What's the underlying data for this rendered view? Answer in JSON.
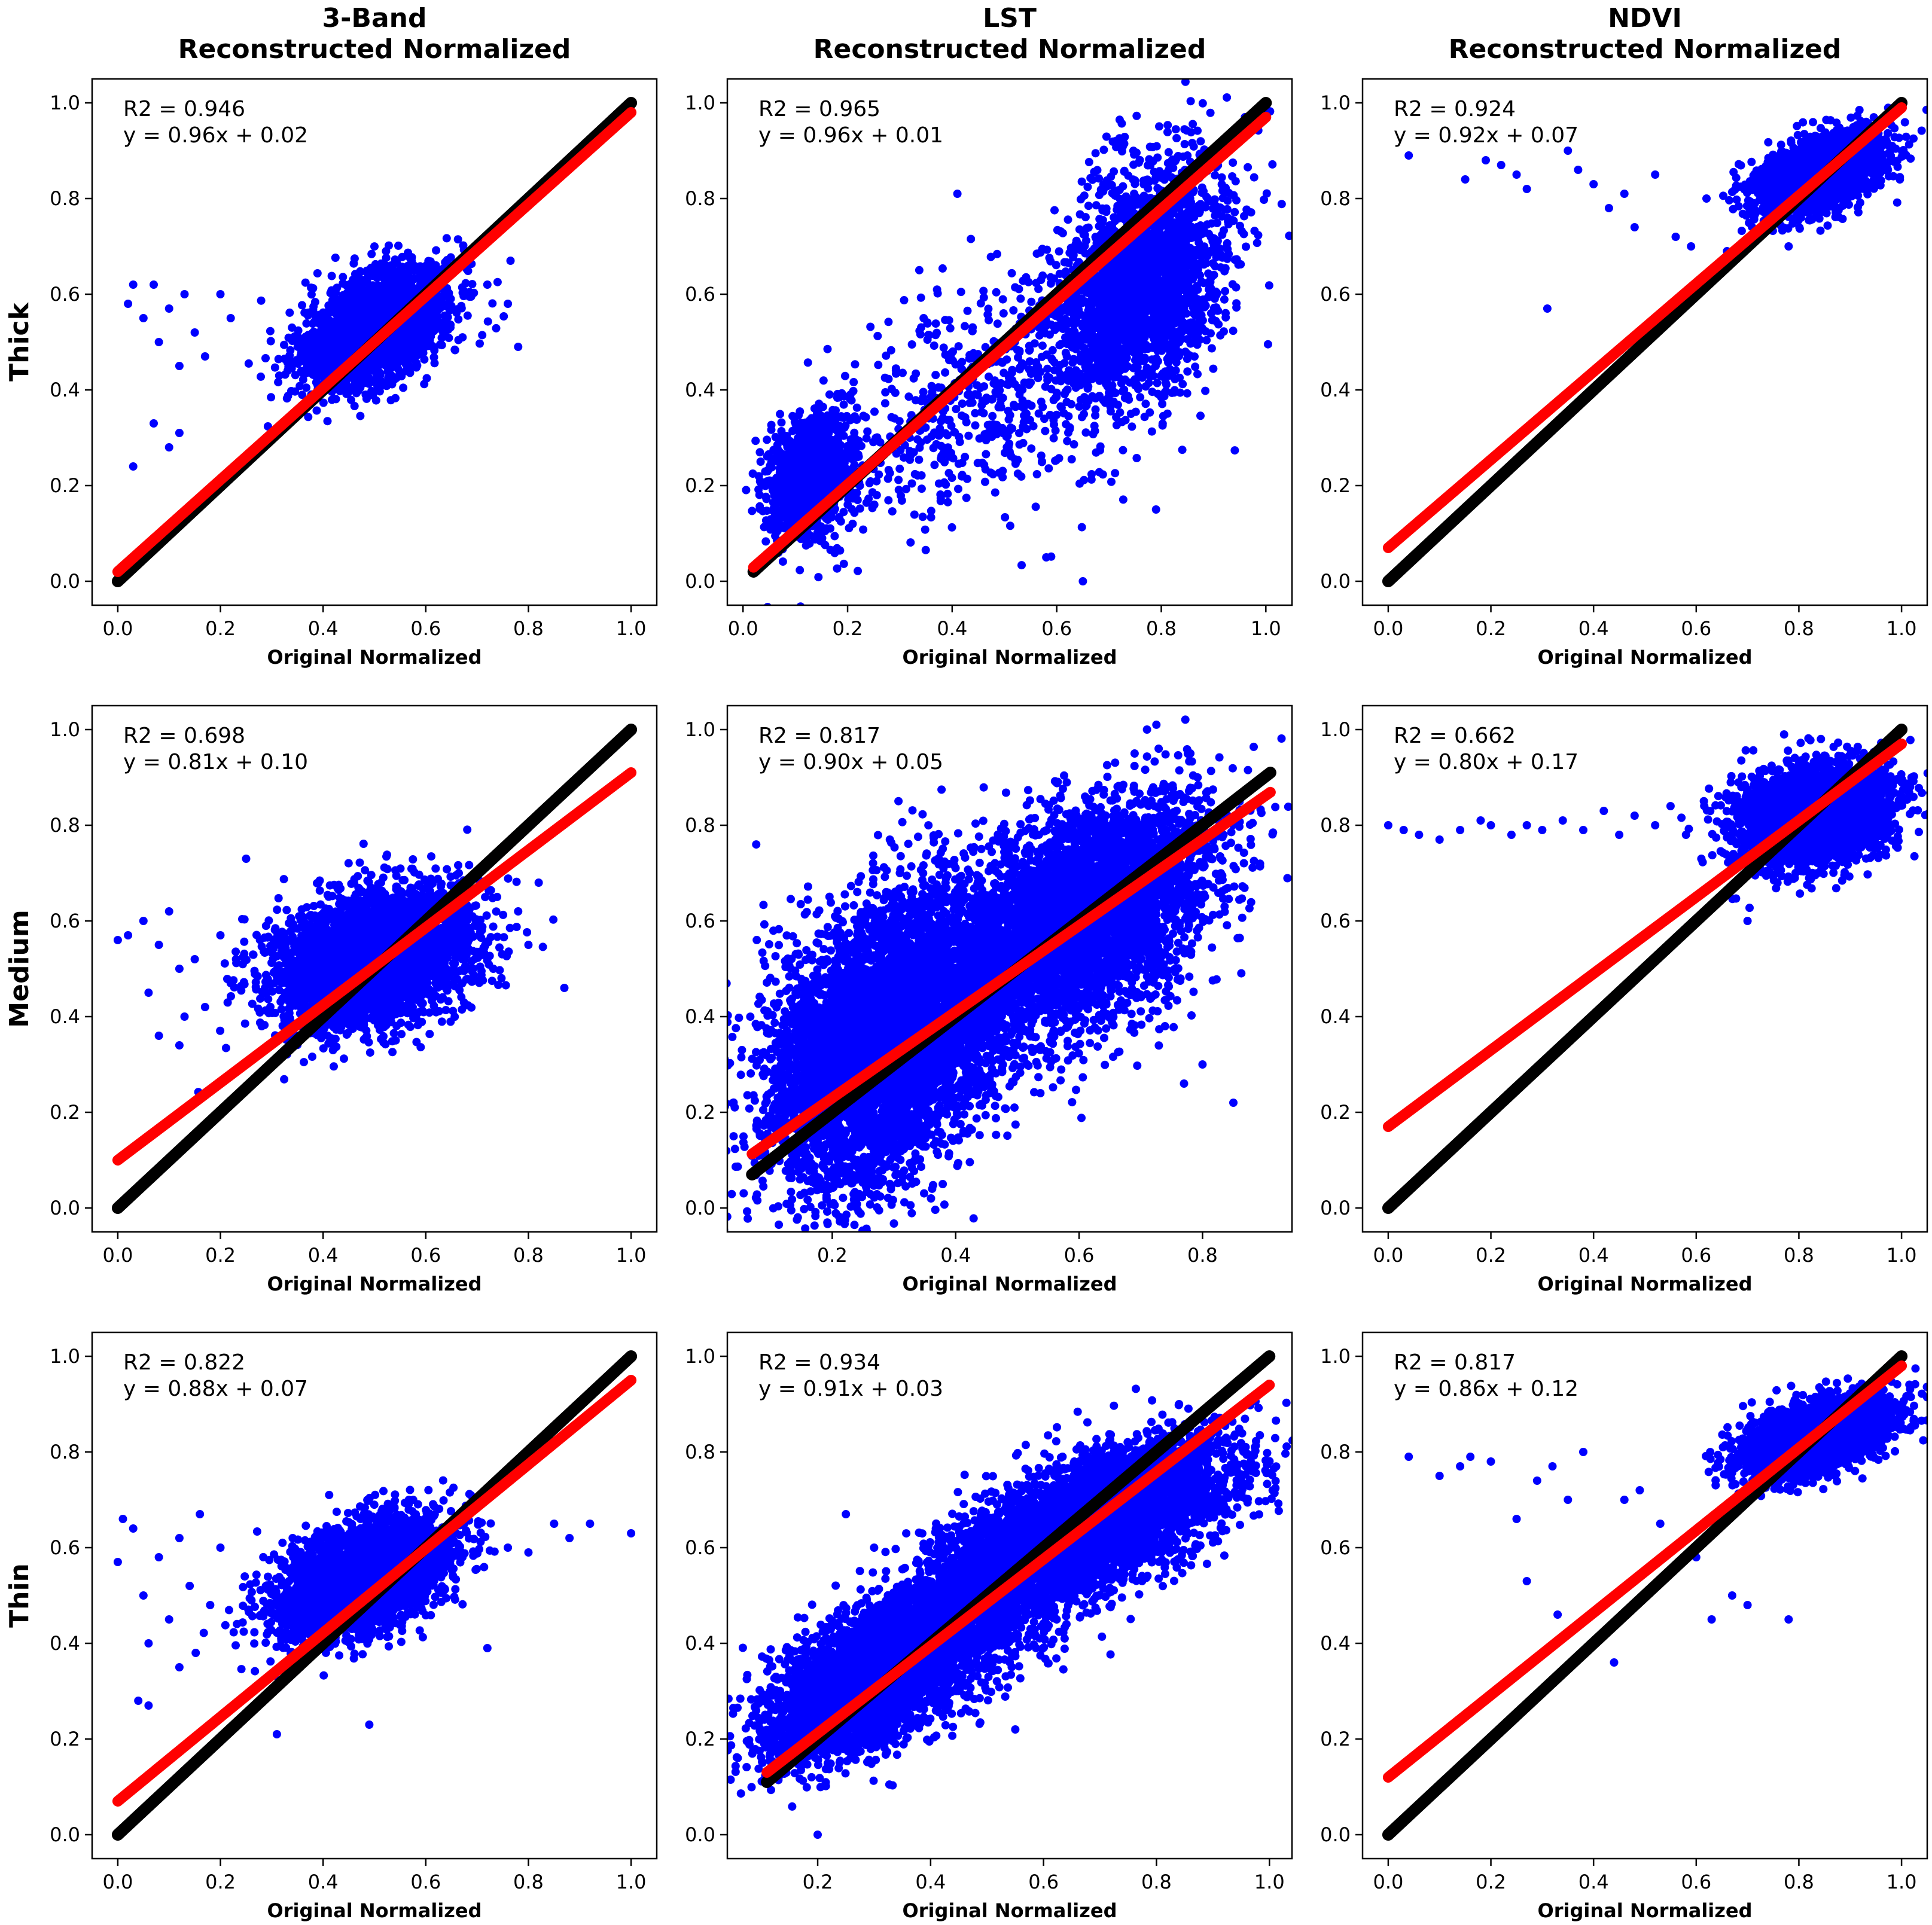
{
  "figure": {
    "column_titles": [
      {
        "line1": "3-Band",
        "line2": "Reconstructed Normalized"
      },
      {
        "line1": "LST",
        "line2": "Reconstructed Normalized"
      },
      {
        "line1": "NDVI",
        "line2": "Reconstructed Normalized"
      }
    ],
    "row_titles": [
      "Thick",
      "Medium",
      "Thin"
    ],
    "colors": {
      "points": "#0000ff",
      "fit_line": "#ff0000",
      "identity_line": "#000000"
    }
  },
  "chart_data": [
    {
      "type": "scatter",
      "id": "thick-3band",
      "row": 0,
      "col": 0,
      "xlabel": "Original Normalized",
      "ylabel": "",
      "r2_text": "R2 = 0.946",
      "eq_text": "y = 0.96x + 0.02",
      "slope": 0.96,
      "intercept": 0.02,
      "xlim": [
        -0.05,
        1.05
      ],
      "ylim": [
        -0.05,
        1.05
      ],
      "xticks": [
        0.0,
        0.2,
        0.4,
        0.6,
        0.8,
        1.0
      ],
      "yticks": [
        0.0,
        0.2,
        0.4,
        0.6,
        0.8,
        1.0
      ],
      "identity": [
        0.0,
        1.0
      ],
      "fit": [
        0.0,
        1.0
      ],
      "points": {
        "n": 2600,
        "cx": 0.5,
        "cy": 0.53,
        "sx": 0.07,
        "sy": 0.06,
        "rho": 0.45,
        "outliers": [
          [
            0.02,
            0.58
          ],
          [
            0.03,
            0.62
          ],
          [
            0.05,
            0.55
          ],
          [
            0.07,
            0.62
          ],
          [
            0.08,
            0.5
          ],
          [
            0.1,
            0.57
          ],
          [
            0.12,
            0.45
          ],
          [
            0.13,
            0.6
          ],
          [
            0.15,
            0.52
          ],
          [
            0.17,
            0.47
          ],
          [
            0.2,
            0.6
          ],
          [
            0.22,
            0.55
          ],
          [
            0.03,
            0.24
          ],
          [
            0.07,
            0.33
          ],
          [
            0.1,
            0.28
          ],
          [
            0.12,
            0.31
          ],
          [
            0.72,
            0.62
          ],
          [
            0.76,
            0.58
          ],
          [
            0.78,
            0.49
          ]
        ]
      }
    },
    {
      "type": "scatter",
      "id": "thick-lst",
      "row": 0,
      "col": 1,
      "xlabel": "Original Normalized",
      "ylabel": "",
      "r2_text": "R2 = 0.965",
      "eq_text": "y = 0.96x + 0.01",
      "slope": 0.96,
      "intercept": 0.01,
      "xlim": [
        -0.03,
        1.05
      ],
      "ylim": [
        -0.05,
        1.05
      ],
      "xticks": [
        0.0,
        0.2,
        0.4,
        0.6,
        0.8,
        1.0
      ],
      "yticks": [
        0.0,
        0.2,
        0.4,
        0.6,
        0.8,
        1.0
      ],
      "identity": [
        0.02,
        1.0
      ],
      "fit": [
        0.02,
        1.0
      ],
      "points": {
        "clusters": [
          {
            "n": 1300,
            "cx": 0.13,
            "cy": 0.22,
            "sx": 0.04,
            "sy": 0.06,
            "rho": 0.2
          },
          {
            "n": 2400,
            "cx": 0.76,
            "cy": 0.62,
            "sx": 0.08,
            "sy": 0.13,
            "rho": 0.4
          },
          {
            "n": 600,
            "cx": 0.45,
            "cy": 0.38,
            "sx": 0.16,
            "sy": 0.14,
            "rho": 0.5
          }
        ],
        "outliers": [
          [
            0.41,
            0.81
          ],
          [
            0.57,
            0.63
          ],
          [
            0.65,
            0.0
          ],
          [
            0.58,
            0.05
          ],
          [
            0.79,
            0.15
          ],
          [
            0.96,
            0.97
          ],
          [
            0.85,
            0.89
          ]
        ]
      }
    },
    {
      "type": "scatter",
      "id": "thick-ndvi",
      "row": 0,
      "col": 2,
      "xlabel": "Original Normalized",
      "ylabel": "",
      "r2_text": "R2 = 0.924",
      "eq_text": "y = 0.92x + 0.07",
      "slope": 0.92,
      "intercept": 0.07,
      "xlim": [
        -0.05,
        1.05
      ],
      "ylim": [
        -0.05,
        1.05
      ],
      "xticks": [
        0.0,
        0.2,
        0.4,
        0.6,
        0.8,
        1.0
      ],
      "yticks": [
        0.0,
        0.2,
        0.4,
        0.6,
        0.8,
        1.0
      ],
      "identity": [
        0.0,
        1.0
      ],
      "fit": [
        0.0,
        1.0
      ],
      "points": {
        "n": 2600,
        "cx": 0.84,
        "cy": 0.85,
        "sx": 0.06,
        "sy": 0.04,
        "rho": 0.5,
        "outliers": [
          [
            0.04,
            0.89
          ],
          [
            0.15,
            0.84
          ],
          [
            0.19,
            0.88
          ],
          [
            0.22,
            0.87
          ],
          [
            0.25,
            0.85
          ],
          [
            0.27,
            0.82
          ],
          [
            0.31,
            0.57
          ],
          [
            0.35,
            0.9
          ],
          [
            0.37,
            0.86
          ],
          [
            0.4,
            0.83
          ],
          [
            0.43,
            0.78
          ],
          [
            0.46,
            0.81
          ],
          [
            0.48,
            0.74
          ],
          [
            0.52,
            0.85
          ],
          [
            0.56,
            0.72
          ],
          [
            0.59,
            0.7
          ],
          [
            0.62,
            0.8
          ],
          [
            0.66,
            0.69
          ],
          [
            0.78,
            0.7
          ]
        ]
      }
    },
    {
      "type": "scatter",
      "id": "medium-3band",
      "row": 1,
      "col": 0,
      "xlabel": "Original Normalized",
      "ylabel": "",
      "r2_text": "R2 = 0.698",
      "eq_text": "y = 0.81x + 0.10",
      "slope": 0.81,
      "intercept": 0.1,
      "xlim": [
        -0.05,
        1.05
      ],
      "ylim": [
        -0.05,
        1.05
      ],
      "xticks": [
        0.0,
        0.2,
        0.4,
        0.6,
        0.8,
        1.0
      ],
      "yticks": [
        0.0,
        0.2,
        0.4,
        0.6,
        0.8,
        1.0
      ],
      "identity": [
        0.0,
        1.0
      ],
      "fit": [
        0.0,
        1.0
      ],
      "points": {
        "n": 4200,
        "cx": 0.5,
        "cy": 0.52,
        "sx": 0.09,
        "sy": 0.07,
        "rho": 0.3,
        "outliers": [
          [
            0.0,
            0.56
          ],
          [
            0.02,
            0.57
          ],
          [
            0.05,
            0.6
          ],
          [
            0.06,
            0.45
          ],
          [
            0.08,
            0.55
          ],
          [
            0.1,
            0.62
          ],
          [
            0.12,
            0.5
          ],
          [
            0.13,
            0.4
          ],
          [
            0.15,
            0.52
          ],
          [
            0.17,
            0.42
          ],
          [
            0.2,
            0.57
          ],
          [
            0.22,
            0.47
          ],
          [
            0.08,
            0.36
          ],
          [
            0.12,
            0.34
          ],
          [
            0.78,
            0.62
          ],
          [
            0.8,
            0.55
          ],
          [
            0.87,
            0.46
          ],
          [
            0.82,
            0.68
          ],
          [
            0.25,
            0.73
          ]
        ]
      }
    },
    {
      "type": "scatter",
      "id": "medium-lst",
      "row": 1,
      "col": 1,
      "xlabel": "Original Normalized",
      "ylabel": "",
      "r2_text": "R2 = 0.817",
      "eq_text": "y = 0.90x + 0.05",
      "slope": 0.9,
      "intercept": 0.05,
      "xlim": [
        0.03,
        0.945
      ],
      "ylim": [
        -0.05,
        1.05
      ],
      "xticks": [
        0.2,
        0.4,
        0.6,
        0.8
      ],
      "yticks": [
        0.0,
        0.2,
        0.4,
        0.6,
        0.8,
        1.0
      ],
      "identity": [
        0.07,
        0.91
      ],
      "fit": [
        0.07,
        0.91
      ],
      "points": {
        "clusters": [
          {
            "n": 5200,
            "cx": 0.28,
            "cy": 0.35,
            "sx": 0.09,
            "sy": 0.15,
            "rho": 0.35
          },
          {
            "n": 3800,
            "cx": 0.62,
            "cy": 0.62,
            "sx": 0.1,
            "sy": 0.12,
            "rho": 0.45
          },
          {
            "n": 1400,
            "cx": 0.42,
            "cy": 0.45,
            "sx": 0.14,
            "sy": 0.14,
            "rho": 0.5
          }
        ],
        "outliers": [
          [
            0.71,
            1.0
          ],
          [
            0.69,
            0.95
          ],
          [
            0.36,
            0.02
          ],
          [
            0.85,
            0.22
          ],
          [
            0.8,
            0.3
          ],
          [
            0.77,
            0.26
          ]
        ]
      }
    },
    {
      "type": "scatter",
      "id": "medium-ndvi",
      "row": 1,
      "col": 2,
      "xlabel": "Original Normalized",
      "ylabel": "",
      "r2_text": "R2 = 0.662",
      "eq_text": "y = 0.80x + 0.17",
      "slope": 0.8,
      "intercept": 0.17,
      "xlim": [
        -0.05,
        1.05
      ],
      "ylim": [
        -0.05,
        1.05
      ],
      "xticks": [
        0.0,
        0.2,
        0.4,
        0.6,
        0.8,
        1.0
      ],
      "yticks": [
        0.0,
        0.2,
        0.4,
        0.6,
        0.8,
        1.0
      ],
      "identity": [
        0.0,
        1.0
      ],
      "fit": [
        0.0,
        1.0
      ],
      "points": {
        "n": 3600,
        "cx": 0.83,
        "cy": 0.82,
        "sx": 0.07,
        "sy": 0.05,
        "rho": 0.2,
        "outliers": [
          [
            0.0,
            0.8
          ],
          [
            0.03,
            0.79
          ],
          [
            0.06,
            0.78
          ],
          [
            0.1,
            0.77
          ],
          [
            0.14,
            0.79
          ],
          [
            0.18,
            0.81
          ],
          [
            0.2,
            0.8
          ],
          [
            0.24,
            0.78
          ],
          [
            0.27,
            0.8
          ],
          [
            0.3,
            0.79
          ],
          [
            0.34,
            0.81
          ],
          [
            0.38,
            0.79
          ],
          [
            0.42,
            0.83
          ],
          [
            0.45,
            0.78
          ],
          [
            0.48,
            0.82
          ],
          [
            0.52,
            0.8
          ],
          [
            0.55,
            0.84
          ],
          [
            0.58,
            0.78
          ],
          [
            0.61,
            0.73
          ],
          [
            0.7,
            0.6
          ]
        ]
      }
    },
    {
      "type": "scatter",
      "id": "thin-3band",
      "row": 2,
      "col": 0,
      "xlabel": "Original Normalized",
      "ylabel": "",
      "r2_text": "R2 = 0.822",
      "eq_text": "y = 0.88x + 0.07",
      "slope": 0.88,
      "intercept": 0.07,
      "xlim": [
        -0.05,
        1.05
      ],
      "ylim": [
        -0.05,
        1.05
      ],
      "xticks": [
        0.0,
        0.2,
        0.4,
        0.6,
        0.8,
        1.0
      ],
      "yticks": [
        0.0,
        0.2,
        0.4,
        0.6,
        0.8,
        1.0
      ],
      "identity": [
        0.0,
        1.0
      ],
      "fit": [
        0.0,
        1.0
      ],
      "points": {
        "n": 3600,
        "cx": 0.48,
        "cy": 0.54,
        "sx": 0.08,
        "sy": 0.06,
        "rho": 0.45,
        "outliers": [
          [
            0.0,
            0.57
          ],
          [
            0.01,
            0.66
          ],
          [
            0.03,
            0.64
          ],
          [
            0.05,
            0.5
          ],
          [
            0.06,
            0.4
          ],
          [
            0.08,
            0.58
          ],
          [
            0.1,
            0.45
          ],
          [
            0.12,
            0.62
          ],
          [
            0.14,
            0.52
          ],
          [
            0.16,
            0.67
          ],
          [
            0.18,
            0.48
          ],
          [
            0.2,
            0.6
          ],
          [
            0.04,
            0.28
          ],
          [
            0.06,
            0.27
          ],
          [
            0.12,
            0.35
          ],
          [
            0.31,
            0.21
          ],
          [
            0.49,
            0.23
          ],
          [
            0.72,
            0.39
          ],
          [
            0.76,
            0.6
          ],
          [
            0.8,
            0.59
          ],
          [
            0.85,
            0.65
          ],
          [
            0.88,
            0.62
          ],
          [
            0.92,
            0.65
          ],
          [
            1.0,
            0.63
          ]
        ]
      }
    },
    {
      "type": "scatter",
      "id": "thin-lst",
      "row": 2,
      "col": 1,
      "xlabel": "Original Normalized",
      "ylabel": "",
      "r2_text": "R2 = 0.934",
      "eq_text": "y = 0.91x + 0.03",
      "slope": 0.91,
      "intercept": 0.03,
      "xlim": [
        0.04,
        1.04
      ],
      "ylim": [
        -0.05,
        1.05
      ],
      "xticks": [
        0.2,
        0.4,
        0.6,
        0.8,
        1.0
      ],
      "yticks": [
        0.0,
        0.2,
        0.4,
        0.6,
        0.8,
        1.0
      ],
      "identity": [
        0.11,
        1.0
      ],
      "fit": [
        0.11,
        1.0
      ],
      "points": {
        "clusters": [
          {
            "n": 4200,
            "cx": 0.3,
            "cy": 0.33,
            "sx": 0.09,
            "sy": 0.08,
            "rho": 0.6
          },
          {
            "n": 4200,
            "cx": 0.7,
            "cy": 0.66,
            "sx": 0.12,
            "sy": 0.08,
            "rho": 0.6
          },
          {
            "n": 1500,
            "cx": 0.5,
            "cy": 0.5,
            "sx": 0.12,
            "sy": 0.1,
            "rho": 0.6
          }
        ],
        "outliers": [
          [
            0.2,
            0.0
          ],
          [
            0.25,
            0.67
          ],
          [
            0.3,
            0.6
          ],
          [
            0.84,
            0.9
          ],
          [
            0.88,
            0.83
          ],
          [
            0.55,
            0.22
          ]
        ]
      }
    },
    {
      "type": "scatter",
      "id": "thin-ndvi",
      "row": 2,
      "col": 2,
      "xlabel": "Original Normalized",
      "ylabel": "",
      "r2_text": "R2 = 0.817",
      "eq_text": "y = 0.86x + 0.12",
      "slope": 0.86,
      "intercept": 0.12,
      "xlim": [
        -0.05,
        1.05
      ],
      "ylim": [
        -0.05,
        1.05
      ],
      "xticks": [
        0.0,
        0.2,
        0.4,
        0.6,
        0.8,
        1.0
      ],
      "yticks": [
        0.0,
        0.2,
        0.4,
        0.6,
        0.8,
        1.0
      ],
      "identity": [
        0.0,
        1.0
      ],
      "fit": [
        0.0,
        1.0
      ],
      "points": {
        "n": 3000,
        "cx": 0.83,
        "cy": 0.83,
        "sx": 0.07,
        "sy": 0.04,
        "rho": 0.5,
        "outliers": [
          [
            0.04,
            0.79
          ],
          [
            0.1,
            0.75
          ],
          [
            0.14,
            0.77
          ],
          [
            0.16,
            0.79
          ],
          [
            0.2,
            0.78
          ],
          [
            0.25,
            0.66
          ],
          [
            0.27,
            0.53
          ],
          [
            0.29,
            0.74
          ],
          [
            0.32,
            0.77
          ],
          [
            0.33,
            0.46
          ],
          [
            0.35,
            0.7
          ],
          [
            0.38,
            0.8
          ],
          [
            0.41,
            0.41
          ],
          [
            0.44,
            0.36
          ],
          [
            0.46,
            0.7
          ],
          [
            0.49,
            0.72
          ],
          [
            0.53,
            0.65
          ],
          [
            0.56,
            0.6
          ],
          [
            0.6,
            0.58
          ],
          [
            0.63,
            0.45
          ],
          [
            0.67,
            0.5
          ],
          [
            0.7,
            0.48
          ],
          [
            0.78,
            0.45
          ]
        ]
      }
    }
  ]
}
